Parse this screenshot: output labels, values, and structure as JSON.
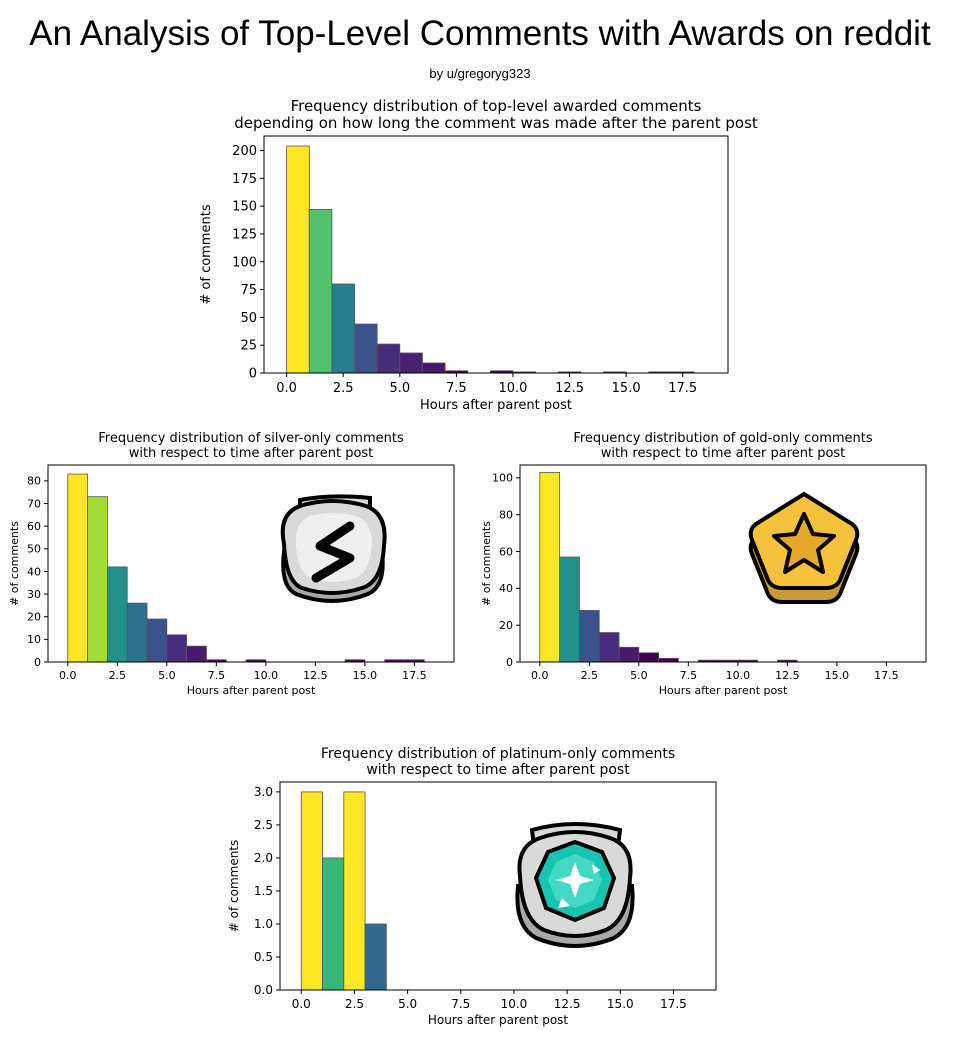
{
  "page": {
    "title": "An Analysis of Top-Level Comments with Awards on reddit",
    "byline": "by u/gregoryg323"
  },
  "awards": {
    "silver": "silver-award-icon",
    "gold": "gold-award-icon",
    "platinum": "platinum-award-icon"
  },
  "chart_data": [
    {
      "type": "bar",
      "title": "Frequency distribution of top-level awarded comments\ndepending on how long the comment was made after the parent post",
      "xlabel": "Hours after parent post",
      "ylabel": "# of comments",
      "xlim": [
        -1,
        19.5
      ],
      "ylim": [
        0,
        213
      ],
      "bin_width": 1,
      "bins": [
        0,
        1,
        2,
        3,
        4,
        5,
        6,
        7,
        8,
        9,
        10,
        11,
        12,
        13,
        14,
        15,
        16,
        17
      ],
      "values": [
        204,
        147,
        80,
        44,
        26,
        18,
        9,
        2,
        0,
        2,
        1,
        0,
        1,
        0,
        1,
        0,
        1,
        1
      ],
      "colors": [
        "#fde725",
        "#4ec36b",
        "#287d8e",
        "#3b528b",
        "#472c7a",
        "#482173",
        "#481769",
        "#440154",
        "#440154",
        "#440154",
        "#440154",
        "#440154",
        "#440154",
        "#440154",
        "#440154",
        "#440154",
        "#440154",
        "#440154"
      ],
      "xticks": [
        "0.0",
        "2.5",
        "5.0",
        "7.5",
        "10.0",
        "12.5",
        "15.0",
        "17.5"
      ],
      "yticks": [
        0,
        25,
        50,
        75,
        100,
        125,
        150,
        175,
        200
      ]
    },
    {
      "type": "bar",
      "title": "Frequency distribution of silver-only comments\nwith respect to time after parent post",
      "xlabel": "Hours after parent post",
      "ylabel": "# of comments",
      "xlim": [
        -1,
        19.5
      ],
      "ylim": [
        0,
        87
      ],
      "bin_width": 1,
      "bins": [
        0,
        1,
        2,
        3,
        4,
        5,
        6,
        7,
        8,
        9,
        10,
        11,
        12,
        13,
        14,
        15,
        16,
        17
      ],
      "values": [
        83,
        73,
        42,
        26,
        19,
        12,
        7,
        1,
        0,
        1,
        0,
        0,
        0,
        0,
        1,
        0,
        1,
        1
      ],
      "colors": [
        "#fde725",
        "#a5db36",
        "#21918c",
        "#2c728e",
        "#3b528b",
        "#472d7b",
        "#481a6c",
        "#440154",
        "#440154",
        "#440154",
        "#440154",
        "#440154",
        "#440154",
        "#440154",
        "#440154",
        "#440154",
        "#440154",
        "#440154"
      ],
      "xticks": [
        "0.0",
        "2.5",
        "5.0",
        "7.5",
        "10.0",
        "12.5",
        "15.0",
        "17.5"
      ],
      "yticks": [
        0,
        10,
        20,
        30,
        40,
        50,
        60,
        70,
        80
      ]
    },
    {
      "type": "bar",
      "title": "Frequency distribution of gold-only comments\nwith respect to time after parent post",
      "xlabel": "Hours after parent post",
      "ylabel": "# of comments",
      "xlim": [
        -1,
        19.5
      ],
      "ylim": [
        0,
        107
      ],
      "bin_width": 1,
      "bins": [
        0,
        1,
        2,
        3,
        4,
        5,
        6,
        7,
        8,
        9,
        10,
        11,
        12,
        13,
        14,
        15,
        16,
        17
      ],
      "values": [
        103,
        57,
        28,
        16,
        8,
        5,
        2,
        0,
        1,
        1,
        1,
        0,
        1,
        0,
        0,
        0,
        0,
        0
      ],
      "colors": [
        "#fde725",
        "#21918c",
        "#3b528b",
        "#472d7b",
        "#481a6c",
        "#440154",
        "#440154",
        "#440154",
        "#440154",
        "#440154",
        "#440154",
        "#440154",
        "#440154",
        "#440154",
        "#440154",
        "#440154",
        "#440154",
        "#440154"
      ],
      "xticks": [
        "0.0",
        "2.5",
        "5.0",
        "7.5",
        "10.0",
        "12.5",
        "15.0",
        "17.5"
      ],
      "yticks": [
        0,
        20,
        40,
        60,
        80,
        100
      ]
    },
    {
      "type": "bar",
      "title": "Frequency distribution of platinum-only comments\nwith respect to time after parent post",
      "xlabel": "Hours after parent post",
      "ylabel": "# of comments",
      "xlim": [
        -1,
        19.5
      ],
      "ylim": [
        0,
        3.15
      ],
      "bin_width": 1,
      "bins": [
        0,
        1,
        2,
        3
      ],
      "values": [
        3,
        2,
        3,
        1
      ],
      "colors": [
        "#fde725",
        "#35b779",
        "#fde725",
        "#31688e"
      ],
      "xticks": [
        "0.0",
        "2.5",
        "5.0",
        "7.5",
        "10.0",
        "12.5",
        "15.0",
        "17.5"
      ],
      "yticks": [
        "0.0",
        "0.5",
        "1.0",
        "1.5",
        "2.0",
        "2.5",
        "3.0"
      ]
    }
  ]
}
